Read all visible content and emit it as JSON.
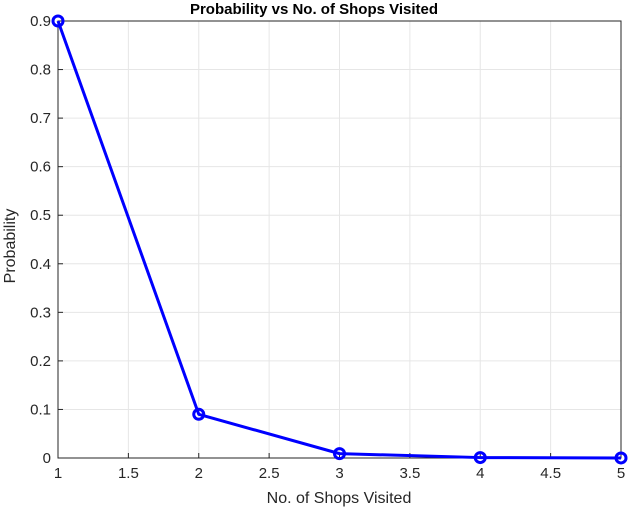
{
  "chart_data": {
    "type": "line",
    "title": "Probability vs No. of Shops Visited",
    "xlabel": "No. of Shops Visited",
    "ylabel": "Probability",
    "xlim": [
      1,
      5
    ],
    "ylim": [
      0,
      0.9
    ],
    "xticks": [
      "1",
      "1.5",
      "2",
      "2.5",
      "3",
      "3.5",
      "4",
      "4.5",
      "5"
    ],
    "yticks": [
      "0",
      "0.1",
      "0.2",
      "0.3",
      "0.4",
      "0.5",
      "0.6",
      "0.7",
      "0.8",
      "0.9"
    ],
    "grid": true,
    "series": [
      {
        "x": [
          1,
          2,
          3,
          4,
          5
        ],
        "y": [
          0.9,
          0.09,
          0.009,
          0.0009,
          9e-05
        ],
        "color": "#0000ff",
        "marker": "circle"
      }
    ]
  }
}
